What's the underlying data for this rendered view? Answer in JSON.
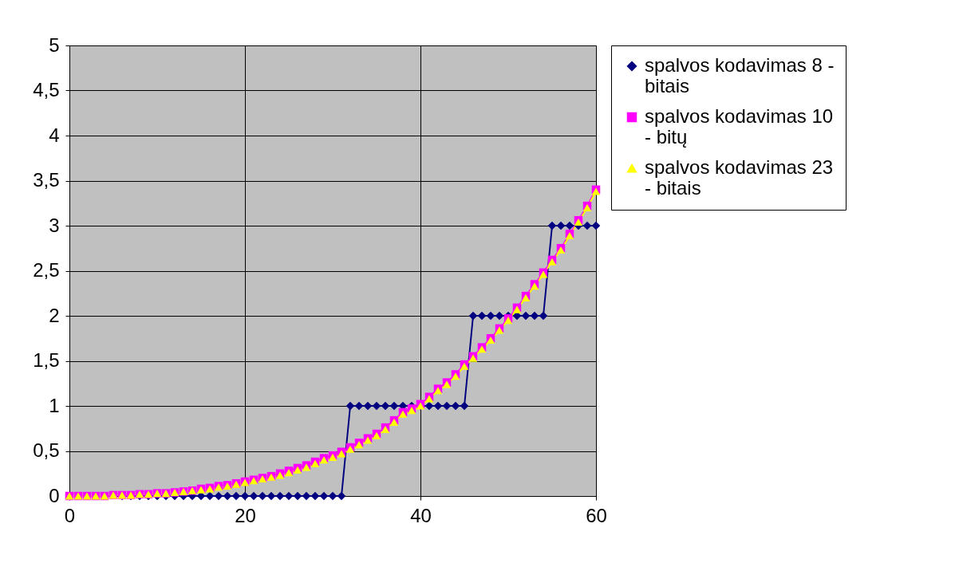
{
  "chart_data": {
    "type": "line",
    "x": [
      0,
      1,
      2,
      3,
      4,
      5,
      6,
      7,
      8,
      9,
      10,
      11,
      12,
      13,
      14,
      15,
      16,
      17,
      18,
      19,
      20,
      21,
      22,
      23,
      24,
      25,
      26,
      27,
      28,
      29,
      30,
      31,
      32,
      33,
      34,
      35,
      36,
      37,
      38,
      39,
      40,
      41,
      42,
      43,
      44,
      45,
      46,
      47,
      48,
      49,
      50,
      51,
      52,
      53,
      54,
      55,
      56,
      57,
      58,
      59,
      60
    ],
    "series": [
      {
        "name": "spalvos kodavimas 8 - bitais",
        "color": "#000080",
        "marker": "diamond",
        "values": [
          null,
          null,
          null,
          null,
          null,
          null,
          0,
          0,
          0,
          0,
          0,
          0,
          0,
          0,
          0,
          0,
          0,
          0,
          0,
          0,
          0,
          0,
          0,
          0,
          0,
          0,
          0,
          0,
          0,
          0,
          0,
          0,
          1,
          1,
          1,
          1,
          1,
          1,
          1,
          1,
          1,
          1,
          1,
          1,
          1,
          1,
          2,
          2,
          2,
          2,
          2,
          2,
          2,
          2,
          2,
          3,
          3,
          3,
          3,
          3,
          3
        ]
      },
      {
        "name": "spalvos kodavimas 10 - bitų",
        "color": "#ff00ff",
        "marker": "square",
        "values": [
          0,
          0,
          0,
          0,
          0,
          0.01,
          0.01,
          0.01,
          0.02,
          0.02,
          0.03,
          0.03,
          0.04,
          0.05,
          0.06,
          0.08,
          0.09,
          0.11,
          0.12,
          0.14,
          0.16,
          0.18,
          0.2,
          0.22,
          0.25,
          0.28,
          0.31,
          0.34,
          0.38,
          0.42,
          0.45,
          0.49,
          0.54,
          0.59,
          0.64,
          0.69,
          0.76,
          0.84,
          0.93,
          0.97,
          1.02,
          1.1,
          1.19,
          1.26,
          1.35,
          1.46,
          1.55,
          1.65,
          1.75,
          1.86,
          1.97,
          2.09,
          2.22,
          2.35,
          2.48,
          2.62,
          2.75,
          2.91,
          3.06,
          3.22,
          3.4
        ]
      },
      {
        "name": "spalvos kodavimas 23 - bitais",
        "color": "#ffff00",
        "marker": "triangle",
        "values": [
          0,
          0,
          0,
          0,
          0,
          0.01,
          0.01,
          0.01,
          0.02,
          0.02,
          0.03,
          0.03,
          0.04,
          0.05,
          0.06,
          0.07,
          0.08,
          0.1,
          0.11,
          0.13,
          0.15,
          0.17,
          0.19,
          0.21,
          0.23,
          0.26,
          0.29,
          0.32,
          0.36,
          0.4,
          0.43,
          0.47,
          0.52,
          0.57,
          0.62,
          0.67,
          0.74,
          0.82,
          0.91,
          0.95,
          1.0,
          1.08,
          1.17,
          1.24,
          1.33,
          1.44,
          1.53,
          1.63,
          1.73,
          1.84,
          1.95,
          2.07,
          2.2,
          2.33,
          2.46,
          2.6,
          2.73,
          2.89,
          3.04,
          3.2,
          3.38
        ]
      }
    ],
    "xlim": [
      0,
      60
    ],
    "xticks": [
      0,
      20,
      40,
      60
    ],
    "ylim": [
      0,
      5
    ],
    "yticks": [
      0,
      {
        "value": 0.5,
        "label": "0,5"
      },
      1,
      {
        "value": 1.5,
        "label": "1,5"
      },
      2,
      {
        "value": 2.5,
        "label": "2,5"
      },
      3,
      {
        "value": 3.5,
        "label": "3,5"
      },
      4,
      {
        "value": 4.5,
        "label": "4,5"
      },
      5
    ],
    "grid": true,
    "legend": "right",
    "line_style": "solid"
  }
}
